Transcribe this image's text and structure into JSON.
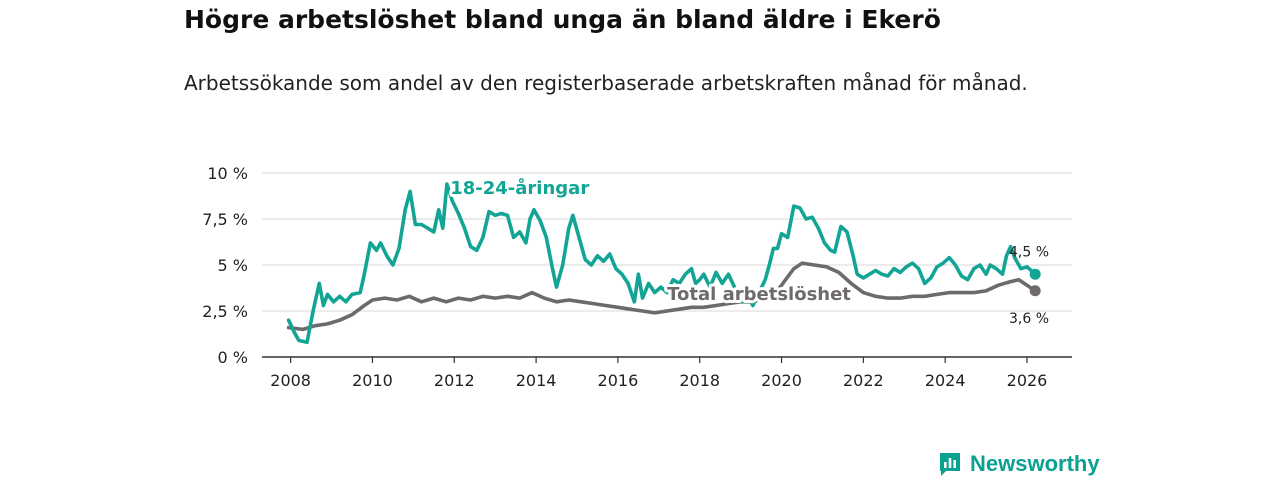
{
  "title": "Högre arbetslöshet bland unga än bland äldre i Ekerö",
  "subtitle": "Arbetssökande som andel av den registerbaserade arbetskraften månad för månad.",
  "branding": {
    "name": "Newsworthy"
  },
  "colors": {
    "youth": "#12a596",
    "total": "#6e6a6b",
    "grid": "#d9d9d9",
    "axis": "#333333",
    "brand": "#0aa190"
  },
  "chart_data": {
    "type": "line",
    "title": "Högre arbetslöshet bland unga än bland äldre i Ekerö",
    "xlabel": "",
    "ylabel": "",
    "xlim": [
      2007.3,
      2027.1
    ],
    "ylim": [
      0,
      10
    ],
    "y_ticks": [
      {
        "value": 0,
        "label": "0 %"
      },
      {
        "value": 2.5,
        "label": "2,5 %"
      },
      {
        "value": 5,
        "label": "5 %"
      },
      {
        "value": 7.5,
        "label": "7,5 %"
      },
      {
        "value": 10,
        "label": "10 %"
      }
    ],
    "x_ticks": [
      {
        "value": 2008,
        "label": "2008"
      },
      {
        "value": 2010,
        "label": "2010"
      },
      {
        "value": 2012,
        "label": "2012"
      },
      {
        "value": 2014,
        "label": "2014"
      },
      {
        "value": 2016,
        "label": "2016"
      },
      {
        "value": 2018,
        "label": "2018"
      },
      {
        "value": 2020,
        "label": "2020"
      },
      {
        "value": 2022,
        "label": "2022"
      },
      {
        "value": 2024,
        "label": "2024"
      },
      {
        "value": 2026,
        "label": "2026"
      }
    ],
    "grid": true,
    "series": [
      {
        "name": "Total arbetslöshet",
        "label": "Total arbetslöshet",
        "color": "#6e6a6b",
        "end_label": "3,6 %",
        "points": [
          [
            2007.95,
            1.6
          ],
          [
            2008.3,
            1.5
          ],
          [
            2008.6,
            1.7
          ],
          [
            2008.9,
            1.8
          ],
          [
            2009.2,
            2.0
          ],
          [
            2009.5,
            2.3
          ],
          [
            2009.8,
            2.8
          ],
          [
            2010.0,
            3.1
          ],
          [
            2010.3,
            3.2
          ],
          [
            2010.6,
            3.1
          ],
          [
            2010.9,
            3.3
          ],
          [
            2011.2,
            3.0
          ],
          [
            2011.5,
            3.2
          ],
          [
            2011.8,
            3.0
          ],
          [
            2012.1,
            3.2
          ],
          [
            2012.4,
            3.1
          ],
          [
            2012.7,
            3.3
          ],
          [
            2013.0,
            3.2
          ],
          [
            2013.3,
            3.3
          ],
          [
            2013.6,
            3.2
          ],
          [
            2013.9,
            3.5
          ],
          [
            2014.2,
            3.2
          ],
          [
            2014.5,
            3.0
          ],
          [
            2014.8,
            3.1
          ],
          [
            2015.1,
            3.0
          ],
          [
            2015.4,
            2.9
          ],
          [
            2015.7,
            2.8
          ],
          [
            2016.0,
            2.7
          ],
          [
            2016.3,
            2.6
          ],
          [
            2016.6,
            2.5
          ],
          [
            2016.9,
            2.4
          ],
          [
            2017.2,
            2.5
          ],
          [
            2017.5,
            2.6
          ],
          [
            2017.8,
            2.7
          ],
          [
            2018.1,
            2.7
          ],
          [
            2018.4,
            2.8
          ],
          [
            2018.7,
            2.9
          ],
          [
            2019.0,
            3.0
          ],
          [
            2019.3,
            3.0
          ],
          [
            2019.6,
            3.2
          ],
          [
            2019.9,
            3.6
          ],
          [
            2020.1,
            4.2
          ],
          [
            2020.3,
            4.8
          ],
          [
            2020.5,
            5.1
          ],
          [
            2020.8,
            5.0
          ],
          [
            2021.1,
            4.9
          ],
          [
            2021.4,
            4.6
          ],
          [
            2021.7,
            4.0
          ],
          [
            2022.0,
            3.5
          ],
          [
            2022.3,
            3.3
          ],
          [
            2022.6,
            3.2
          ],
          [
            2022.9,
            3.2
          ],
          [
            2023.2,
            3.3
          ],
          [
            2023.5,
            3.3
          ],
          [
            2023.8,
            3.4
          ],
          [
            2024.1,
            3.5
          ],
          [
            2024.4,
            3.5
          ],
          [
            2024.7,
            3.5
          ],
          [
            2025.0,
            3.6
          ],
          [
            2025.3,
            3.9
          ],
          [
            2025.6,
            4.1
          ],
          [
            2025.8,
            4.2
          ],
          [
            2026.0,
            3.9
          ],
          [
            2026.2,
            3.6
          ]
        ]
      },
      {
        "name": "18-24-åringar",
        "label": "18-24-åringar",
        "color": "#12a596",
        "end_label": "4,5 %",
        "points": [
          [
            2007.95,
            2.0
          ],
          [
            2008.1,
            1.3
          ],
          [
            2008.2,
            0.9
          ],
          [
            2008.4,
            0.8
          ],
          [
            2008.55,
            2.5
          ],
          [
            2008.7,
            4.0
          ],
          [
            2008.8,
            2.8
          ],
          [
            2008.9,
            3.4
          ],
          [
            2009.05,
            3.0
          ],
          [
            2009.2,
            3.3
          ],
          [
            2009.35,
            3.0
          ],
          [
            2009.5,
            3.4
          ],
          [
            2009.7,
            3.5
          ],
          [
            2009.8,
            4.5
          ],
          [
            2009.95,
            6.2
          ],
          [
            2010.1,
            5.8
          ],
          [
            2010.2,
            6.2
          ],
          [
            2010.35,
            5.5
          ],
          [
            2010.5,
            5.0
          ],
          [
            2010.65,
            5.9
          ],
          [
            2010.8,
            8.0
          ],
          [
            2010.92,
            9.0
          ],
          [
            2011.05,
            7.2
          ],
          [
            2011.2,
            7.2
          ],
          [
            2011.35,
            7.0
          ],
          [
            2011.5,
            6.8
          ],
          [
            2011.62,
            8.0
          ],
          [
            2011.72,
            7.0
          ],
          [
            2011.82,
            9.4
          ],
          [
            2011.95,
            8.5
          ],
          [
            2012.1,
            7.8
          ],
          [
            2012.25,
            7.0
          ],
          [
            2012.4,
            6.0
          ],
          [
            2012.55,
            5.8
          ],
          [
            2012.7,
            6.5
          ],
          [
            2012.85,
            7.9
          ],
          [
            2013.0,
            7.7
          ],
          [
            2013.15,
            7.8
          ],
          [
            2013.3,
            7.7
          ],
          [
            2013.45,
            6.5
          ],
          [
            2013.6,
            6.8
          ],
          [
            2013.75,
            6.2
          ],
          [
            2013.85,
            7.5
          ],
          [
            2013.95,
            8.0
          ],
          [
            2014.1,
            7.4
          ],
          [
            2014.25,
            6.5
          ],
          [
            2014.4,
            4.8
          ],
          [
            2014.5,
            3.8
          ],
          [
            2014.65,
            5.0
          ],
          [
            2014.8,
            7.0
          ],
          [
            2014.9,
            7.7
          ],
          [
            2015.05,
            6.5
          ],
          [
            2015.2,
            5.3
          ],
          [
            2015.35,
            5.0
          ],
          [
            2015.5,
            5.5
          ],
          [
            2015.65,
            5.2
          ],
          [
            2015.8,
            5.6
          ],
          [
            2015.95,
            4.8
          ],
          [
            2016.1,
            4.5
          ],
          [
            2016.25,
            4.0
          ],
          [
            2016.4,
            3.0
          ],
          [
            2016.5,
            4.5
          ],
          [
            2016.6,
            3.2
          ],
          [
            2016.75,
            4.0
          ],
          [
            2016.9,
            3.5
          ],
          [
            2017.05,
            3.8
          ],
          [
            2017.2,
            3.5
          ],
          [
            2017.35,
            4.2
          ],
          [
            2017.5,
            4.0
          ],
          [
            2017.65,
            4.5
          ],
          [
            2017.8,
            4.8
          ],
          [
            2017.9,
            4.0
          ],
          [
            2018.0,
            4.2
          ],
          [
            2018.1,
            4.5
          ],
          [
            2018.25,
            3.8
          ],
          [
            2018.4,
            4.6
          ],
          [
            2018.55,
            4.0
          ],
          [
            2018.7,
            4.5
          ],
          [
            2018.85,
            3.8
          ],
          [
            2018.95,
            3.3
          ],
          [
            2019.05,
            3.0
          ],
          [
            2019.15,
            3.4
          ],
          [
            2019.3,
            2.8
          ],
          [
            2019.45,
            3.5
          ],
          [
            2019.6,
            4.2
          ],
          [
            2019.7,
            5.0
          ],
          [
            2019.8,
            5.9
          ],
          [
            2019.9,
            5.9
          ],
          [
            2020.0,
            6.7
          ],
          [
            2020.15,
            6.5
          ],
          [
            2020.3,
            8.2
          ],
          [
            2020.45,
            8.1
          ],
          [
            2020.6,
            7.5
          ],
          [
            2020.75,
            7.6
          ],
          [
            2020.9,
            7.0
          ],
          [
            2021.05,
            6.2
          ],
          [
            2021.2,
            5.8
          ],
          [
            2021.3,
            5.7
          ],
          [
            2021.45,
            7.1
          ],
          [
            2021.6,
            6.8
          ],
          [
            2021.75,
            5.5
          ],
          [
            2021.85,
            4.5
          ],
          [
            2022.0,
            4.3
          ],
          [
            2022.15,
            4.5
          ],
          [
            2022.3,
            4.7
          ],
          [
            2022.45,
            4.5
          ],
          [
            2022.6,
            4.4
          ],
          [
            2022.75,
            4.8
          ],
          [
            2022.9,
            4.6
          ],
          [
            2023.05,
            4.9
          ],
          [
            2023.2,
            5.1
          ],
          [
            2023.35,
            4.8
          ],
          [
            2023.5,
            4.0
          ],
          [
            2023.65,
            4.3
          ],
          [
            2023.8,
            4.9
          ],
          [
            2023.95,
            5.1
          ],
          [
            2024.1,
            5.4
          ],
          [
            2024.25,
            5.0
          ],
          [
            2024.4,
            4.4
          ],
          [
            2024.55,
            4.2
          ],
          [
            2024.7,
            4.8
          ],
          [
            2024.85,
            5.0
          ],
          [
            2025.0,
            4.5
          ],
          [
            2025.1,
            5.0
          ],
          [
            2025.25,
            4.8
          ],
          [
            2025.4,
            4.5
          ],
          [
            2025.5,
            5.5
          ],
          [
            2025.6,
            6.0
          ],
          [
            2025.7,
            5.4
          ],
          [
            2025.85,
            4.8
          ],
          [
            2026.0,
            4.9
          ],
          [
            2026.2,
            4.5
          ]
        ]
      }
    ]
  }
}
